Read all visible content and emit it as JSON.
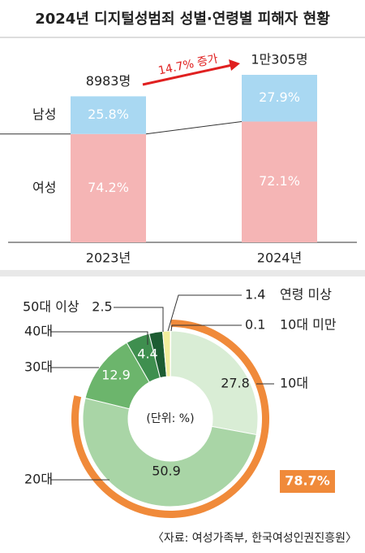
{
  "title": "2024년 디지털성범죄 성별·연령별 피해자 현황",
  "chart_data": [
    {
      "type": "bar",
      "categories": [
        "2023년",
        "2024년"
      ],
      "totals": [
        8983,
        10305
      ],
      "total_labels": [
        "8983명",
        "1만305명"
      ],
      "annotation": "14.7% 증가",
      "series": [
        {
          "name": "남성",
          "color": "#a9d8f2",
          "values": [
            25.8,
            27.9
          ],
          "value_labels": [
            "25.8%",
            "27.9%"
          ]
        },
        {
          "name": "여성",
          "color": "#f5b5b5",
          "values": [
            74.2,
            72.1
          ],
          "value_labels": [
            "74.2%",
            "72.1%"
          ]
        }
      ]
    },
    {
      "type": "pie",
      "unit_label": "(단위: %)",
      "categories": [
        "10대 미만",
        "10대",
        "20대",
        "30대",
        "40대",
        "50대 이상",
        "연령 미상"
      ],
      "values": [
        0.1,
        27.8,
        50.9,
        12.9,
        4.4,
        2.5,
        1.4
      ],
      "colors": [
        "#efe48a",
        "#d9edd5",
        "#a9d5a6",
        "#6cb56c",
        "#3f8f4f",
        "#1d5c32",
        "#f2ee9c"
      ],
      "highlight": {
        "value": 78.7,
        "label": "78.7%"
      },
      "highlight_color": "#f08a3a"
    }
  ],
  "source": "〈자료: 여성가족부, 한국여성인권진흥원〉"
}
